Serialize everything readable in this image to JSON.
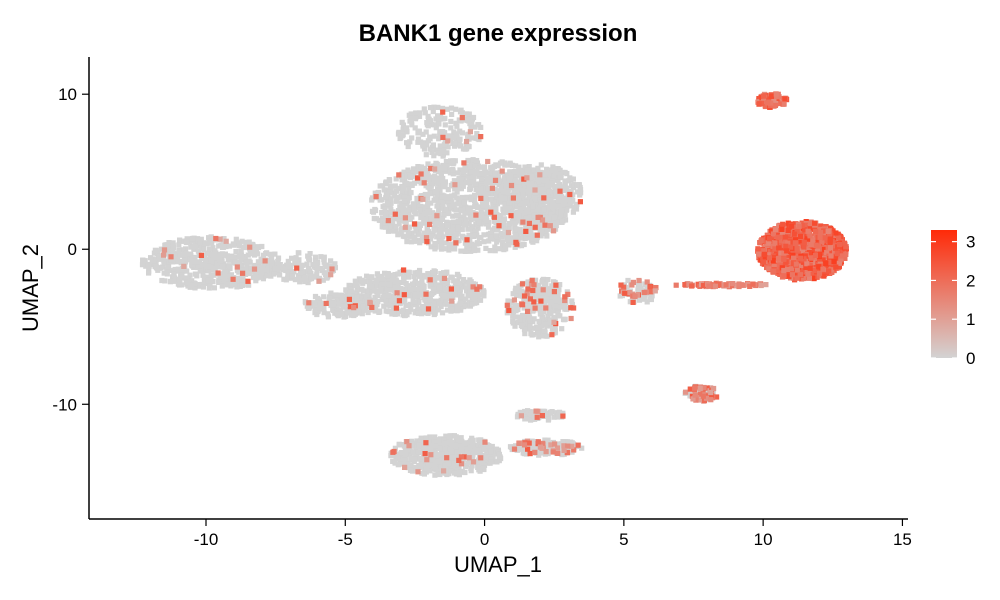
{
  "chart_data": {
    "type": "scatter",
    "title": "BANK1 gene expression",
    "xlabel": "UMAP_1",
    "ylabel": "UMAP_2",
    "xlim": [
      -14.2,
      15.2
    ],
    "ylim": [
      -17.4,
      12.4
    ],
    "xticks": [
      -10,
      -5,
      0,
      5,
      10,
      15
    ],
    "xtick_labels": [
      "-10",
      "-5",
      "0",
      "5",
      "10",
      "15"
    ],
    "yticks": [
      10,
      0,
      -10
    ],
    "ytick_labels": [
      "10",
      "0",
      "-10"
    ],
    "grid": false,
    "legend_placement": "right",
    "colorbar": {
      "ticks": [
        0,
        1,
        2,
        3
      ],
      "tick_labels": [
        "0",
        "1",
        "2",
        "3"
      ],
      "min": 0,
      "max": 3.3,
      "low_color": "#d3d3d3",
      "high_color": "#ff2a08"
    },
    "clusters": [
      {
        "id": "left_blob",
        "x": -9.8,
        "y": -0.9,
        "rx": 2.5,
        "ry": 1.7,
        "n": 520,
        "expr": 0.05
      },
      {
        "id": "left_bridge",
        "x": -6.5,
        "y": -1.2,
        "rx": 1.2,
        "ry": 1.0,
        "n": 130,
        "expr": 0.05
      },
      {
        "id": "upper_stalk",
        "x": -1.6,
        "y": 7.6,
        "rx": 1.5,
        "ry": 1.6,
        "n": 180,
        "expr": 0.04
      },
      {
        "id": "central_mass",
        "x": -0.5,
        "y": 2.8,
        "rx": 3.6,
        "ry": 3.0,
        "n": 1300,
        "expr": 0.05
      },
      {
        "id": "central_right",
        "x": 2.0,
        "y": 3.5,
        "rx": 1.5,
        "ry": 2.0,
        "n": 380,
        "expr": 0.05
      },
      {
        "id": "central_lower",
        "x": -2.5,
        "y": -2.8,
        "rx": 2.5,
        "ry": 1.5,
        "n": 560,
        "expr": 0.05
      },
      {
        "id": "lower_left_arm",
        "x": -5.2,
        "y": -3.6,
        "rx": 1.3,
        "ry": 0.8,
        "n": 170,
        "expr": 0.05
      },
      {
        "id": "lower_right_lobe",
        "x": 2.0,
        "y": -3.8,
        "rx": 1.2,
        "ry": 1.9,
        "n": 300,
        "expr": 0.2
      },
      {
        "id": "mid_small_cluster",
        "x": 5.5,
        "y": -2.7,
        "rx": 0.7,
        "ry": 0.8,
        "n": 80,
        "expr": 0.5
      },
      {
        "id": "connecting_streak",
        "x": 8.5,
        "y": -2.3,
        "rx": 1.8,
        "ry": 0.12,
        "n": 70,
        "expr": 1.6
      },
      {
        "id": "b_cell_cluster",
        "x": 11.4,
        "y": -0.1,
        "rx": 1.6,
        "ry": 1.9,
        "n": 1100,
        "expr": 2.2
      },
      {
        "id": "top_right_cluster",
        "x": 10.3,
        "y": 9.6,
        "rx": 0.55,
        "ry": 0.45,
        "n": 90,
        "expr": 2.0
      },
      {
        "id": "small_cluster",
        "x": 7.8,
        "y": -9.3,
        "rx": 0.6,
        "ry": 0.5,
        "n": 70,
        "expr": 0.8
      },
      {
        "id": "bottom_left_cluster",
        "x": -1.4,
        "y": -13.3,
        "rx": 2.0,
        "ry": 1.3,
        "n": 520,
        "expr": 0.06
      },
      {
        "id": "bottom_right_streak",
        "x": 2.2,
        "y": -12.8,
        "rx": 1.3,
        "ry": 0.5,
        "n": 160,
        "expr": 0.3
      },
      {
        "id": "bottom_thin_arm",
        "x": 2.0,
        "y": -10.7,
        "rx": 0.9,
        "ry": 0.35,
        "n": 60,
        "expr": 0.2
      }
    ]
  }
}
